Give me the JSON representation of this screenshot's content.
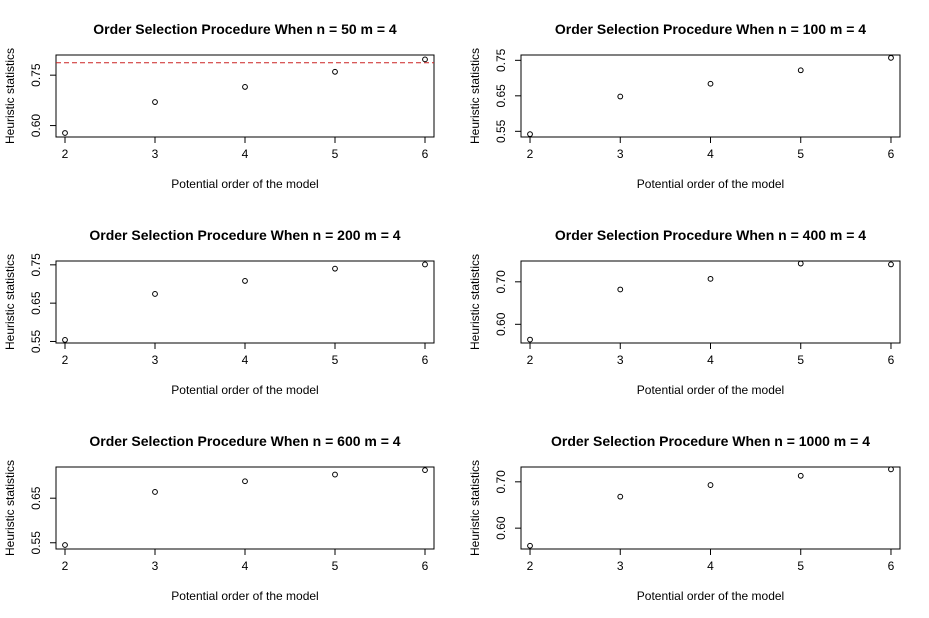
{
  "chart_data": [
    {
      "type": "scatter",
      "title": "Order Selection Procedure When n =  50 m =  4",
      "xlabel": "Potential order of the model",
      "ylabel": "Heuristic statistics",
      "x": [
        2,
        3,
        4,
        5,
        6
      ],
      "y": [
        0.578,
        0.67,
        0.715,
        0.76,
        0.797
      ],
      "xlim": [
        1.9,
        6.1
      ],
      "ylim": [
        0.566,
        0.81
      ],
      "xticks": [
        "2",
        "3",
        "4",
        "5",
        "6"
      ],
      "yticks": [
        "0.60",
        "0.75"
      ],
      "hline": {
        "y": 0.787,
        "color": "#cc2222",
        "style": "dashed"
      }
    },
    {
      "type": "scatter",
      "title": "Order Selection Procedure When n =  100 m =  4",
      "xlabel": "Potential order of the model",
      "ylabel": "Heuristic statistics",
      "x": [
        2,
        3,
        4,
        5,
        6
      ],
      "y": [
        0.542,
        0.648,
        0.684,
        0.722,
        0.757
      ],
      "xlim": [
        1.9,
        6.1
      ],
      "ylim": [
        0.534,
        0.765
      ],
      "xticks": [
        "2",
        "3",
        "4",
        "5",
        "6"
      ],
      "yticks": [
        "0.55",
        "0.65",
        "0.75"
      ]
    },
    {
      "type": "scatter",
      "title": "Order Selection Procedure When n =  200 m =  4",
      "xlabel": "Potential order of the model",
      "ylabel": "Heuristic statistics",
      "x": [
        2,
        3,
        4,
        5,
        6
      ],
      "y": [
        0.554,
        0.674,
        0.708,
        0.74,
        0.751
      ],
      "xlim": [
        1.9,
        6.1
      ],
      "ylim": [
        0.546,
        0.76
      ],
      "xticks": [
        "2",
        "3",
        "4",
        "5",
        "6"
      ],
      "yticks": [
        "0.55",
        "0.65",
        "0.75"
      ]
    },
    {
      "type": "scatter",
      "title": "Order Selection Procedure When n =  400 m =  4",
      "xlabel": "Potential order of the model",
      "ylabel": "Heuristic statistics",
      "x": [
        2,
        3,
        4,
        5,
        6
      ],
      "y": [
        0.564,
        0.682,
        0.707,
        0.743,
        0.741
      ],
      "xlim": [
        1.9,
        6.1
      ],
      "ylim": [
        0.556,
        0.749
      ],
      "xticks": [
        "2",
        "3",
        "4",
        "5",
        "6"
      ],
      "yticks": [
        "0.60",
        "0.70"
      ]
    },
    {
      "type": "scatter",
      "title": "Order Selection Procedure When n =  600 m =  4",
      "xlabel": "Potential order of the model",
      "ylabel": "Heuristic statistics",
      "x": [
        2,
        3,
        4,
        5,
        6
      ],
      "y": [
        0.545,
        0.664,
        0.688,
        0.703,
        0.713
      ],
      "xlim": [
        1.9,
        6.1
      ],
      "ylim": [
        0.536,
        0.72
      ],
      "xticks": [
        "2",
        "3",
        "4",
        "5",
        "6"
      ],
      "yticks": [
        "0.55",
        "0.65"
      ]
    },
    {
      "type": "scatter",
      "title": "Order Selection Procedure When n =  1000 m =  4",
      "xlabel": "Potential order of the model",
      "ylabel": "Heuristic statistics",
      "x": [
        2,
        3,
        4,
        5,
        6
      ],
      "y": [
        0.562,
        0.668,
        0.693,
        0.713,
        0.727
      ],
      "xlim": [
        1.9,
        6.1
      ],
      "ylim": [
        0.555,
        0.732
      ],
      "xticks": [
        "2",
        "3",
        "4",
        "5",
        "6"
      ],
      "yticks": [
        "0.60",
        "0.70"
      ]
    }
  ]
}
